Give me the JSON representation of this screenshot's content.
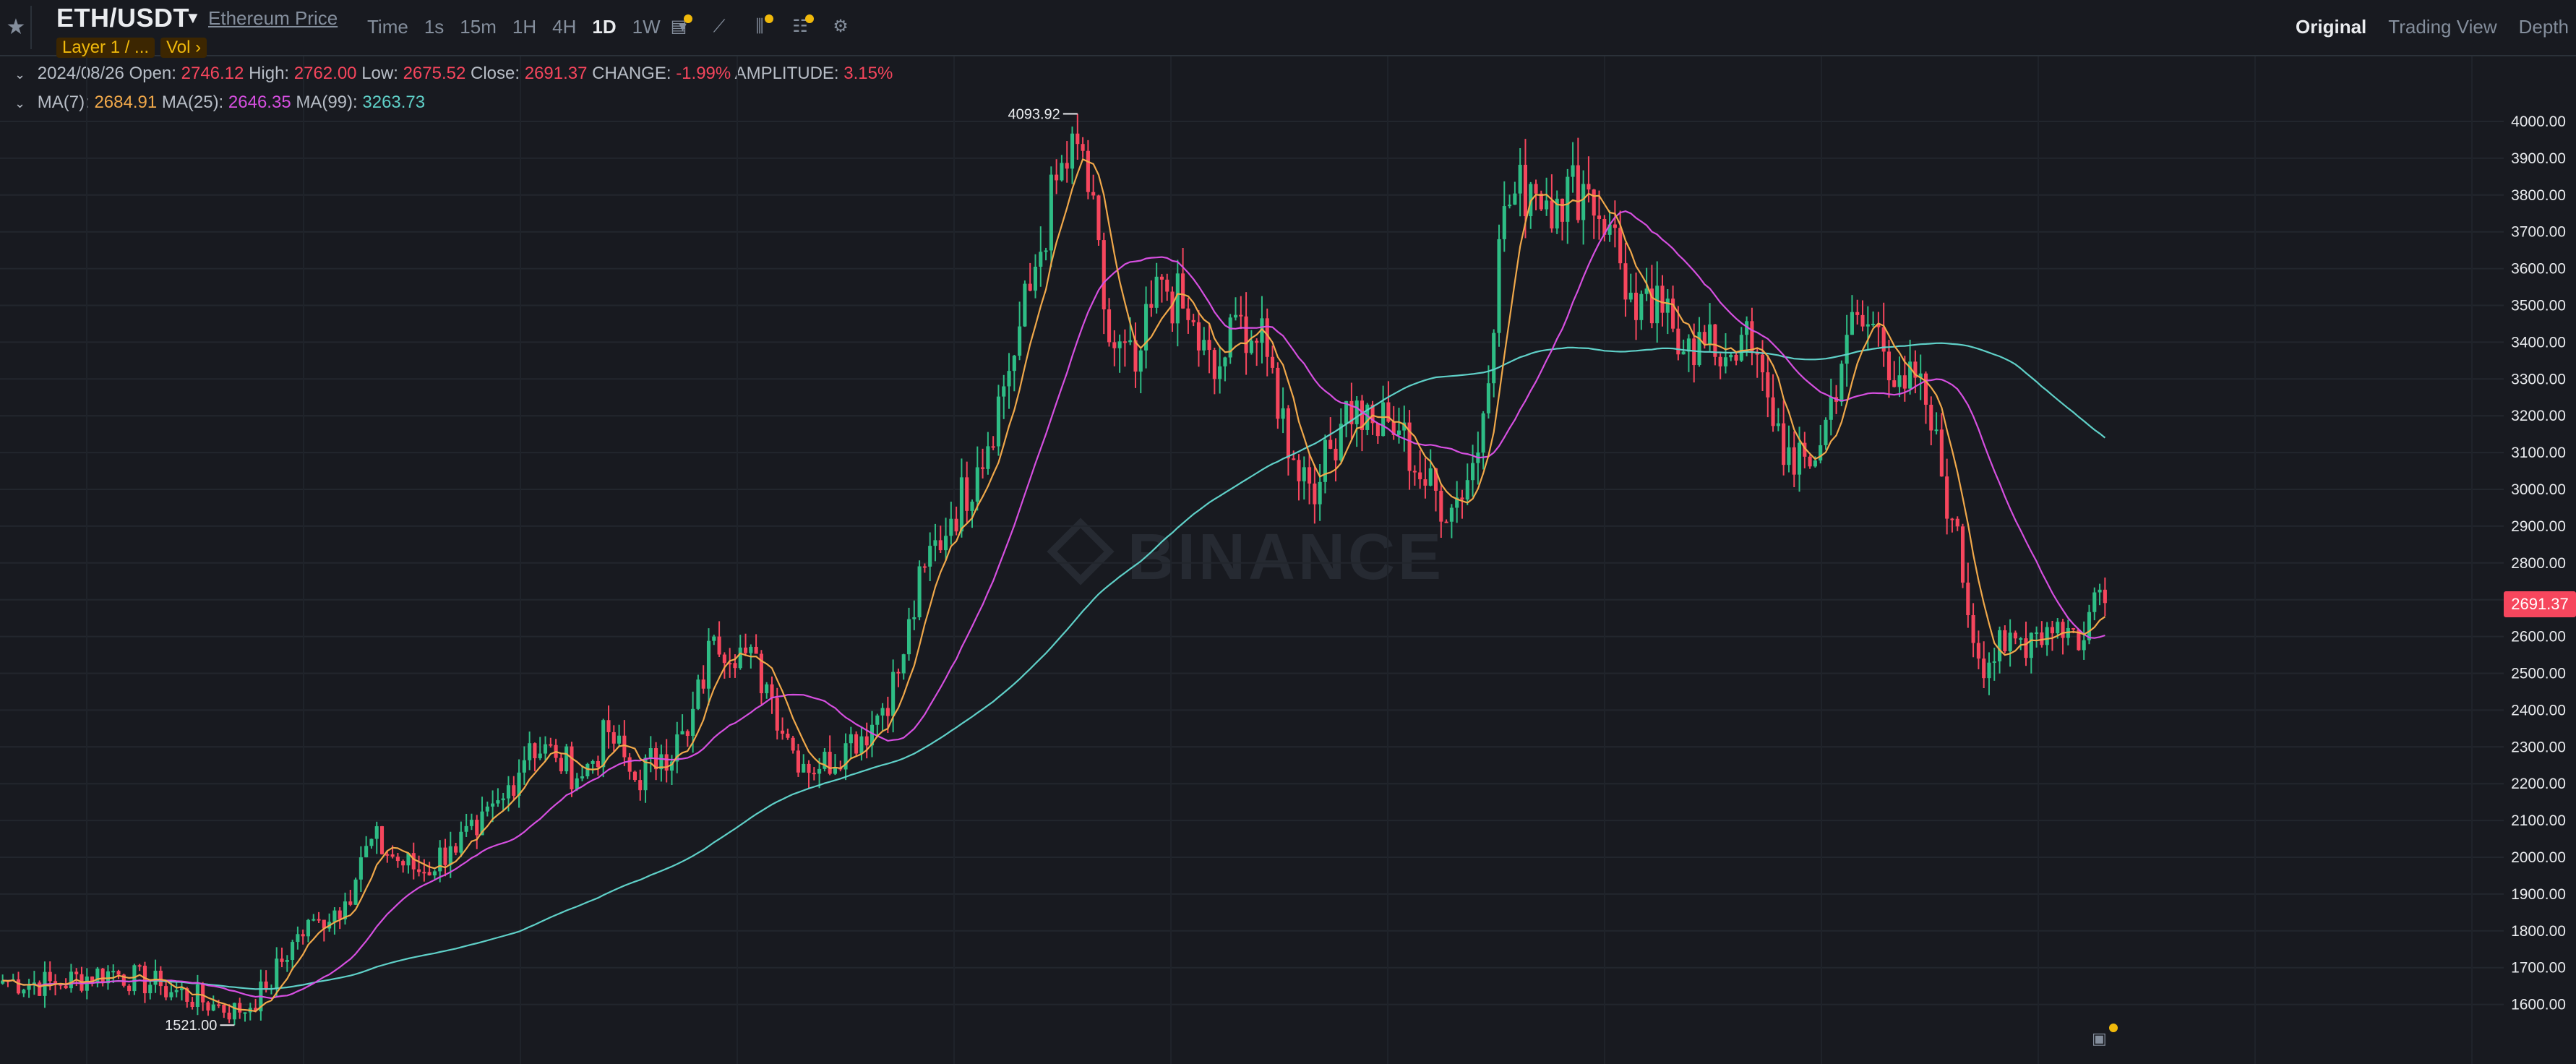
{
  "header": {
    "symbol": "ETH/USDT",
    "price_link": "Ethereum Price",
    "tags": [
      "Layer 1 / ...",
      "Vol  ›"
    ],
    "intervals": [
      "Time",
      "1s",
      "15m",
      "1H",
      "4H",
      "1D",
      "1W"
    ],
    "active_interval": "1D",
    "tool_icons": [
      "indicator-template-icon",
      "line-chart-icon",
      "candle-settings-icon",
      "display-settings-icon",
      "gear-icon"
    ],
    "views": [
      "Original",
      "Trading View",
      "Depth"
    ],
    "active_view": "Original"
  },
  "ohlc": {
    "date": "2024/08/26",
    "open_label": "Open:",
    "open": "2746.12",
    "high_label": "High:",
    "high": "2762.00",
    "low_label": "Low:",
    "low": "2675.52",
    "close_label": "Close:",
    "close": "2691.37",
    "change_label": "CHANGE:",
    "change": "-1.99%",
    "amplitude_label": "AMPLITUDE:",
    "amplitude": "3.15%"
  },
  "ma": {
    "ma7_label": "MA(7):",
    "ma7": "2684.91",
    "ma25_label": "MA(25):",
    "ma25": "2646.35",
    "ma99_label": "MA(99):",
    "ma99": "3263.73"
  },
  "watermark": "BINANCE",
  "last_price": "2691.37",
  "colors": {
    "up": "#2ebd85",
    "down": "#f6465d",
    "ma7": "#f0a84a",
    "ma25": "#d64fe0",
    "ma99": "#5fd0c8",
    "background": "#181a20"
  },
  "chart_data": {
    "type": "candlestick",
    "symbol": "ETH/USDT",
    "interval": "1D",
    "y_ticks": [
      "4000.00",
      "3900.00",
      "3800.00",
      "3700.00",
      "3600.00",
      "3500.00",
      "3400.00",
      "3300.00",
      "3200.00",
      "3100.00",
      "3000.00",
      "2900.00",
      "2800.00",
      "2700.00",
      "2600.00",
      "2500.00",
      "2400.00",
      "2300.00",
      "2200.00",
      "2100.00",
      "2000.00",
      "1900.00",
      "1800.00",
      "1700.00",
      "1600.00"
    ],
    "ylim": [
      1500,
      4130
    ],
    "max_label": "4093.92",
    "min_label": "1521.00",
    "close_anchors": [
      [
        0,
        1665
      ],
      [
        10,
        1655
      ],
      [
        20,
        1690
      ],
      [
        30,
        1650
      ],
      [
        40,
        1600
      ],
      [
        45,
        1578
      ],
      [
        50,
        1640
      ],
      [
        55,
        1770
      ],
      [
        60,
        1830
      ],
      [
        65,
        1880
      ],
      [
        70,
        2050
      ],
      [
        75,
        1990
      ],
      [
        80,
        1960
      ],
      [
        85,
        2030
      ],
      [
        90,
        2060
      ],
      [
        95,
        2160
      ],
      [
        100,
        2310
      ],
      [
        105,
        2270
      ],
      [
        110,
        2220
      ],
      [
        115,
        2340
      ],
      [
        120,
        2210
      ],
      [
        125,
        2280
      ],
      [
        130,
        2330
      ],
      [
        135,
        2600
      ],
      [
        140,
        2570
      ],
      [
        145,
        2470
      ],
      [
        150,
        2290
      ],
      [
        155,
        2240
      ],
      [
        160,
        2310
      ],
      [
        165,
        2360
      ],
      [
        170,
        2500
      ],
      [
        175,
        2790
      ],
      [
        180,
        2920
      ],
      [
        185,
        3060
      ],
      [
        190,
        3280
      ],
      [
        195,
        3540
      ],
      [
        200,
        3840
      ],
      [
        205,
        3920
      ],
      [
        210,
        3400
      ],
      [
        215,
        3320
      ],
      [
        220,
        3570
      ],
      [
        225,
        3460
      ],
      [
        230,
        3300
      ],
      [
        235,
        3470
      ],
      [
        240,
        3360
      ],
      [
        245,
        3080
      ],
      [
        250,
        3020
      ],
      [
        255,
        3240
      ],
      [
        260,
        3180
      ],
      [
        265,
        3160
      ],
      [
        270,
        3010
      ],
      [
        275,
        2950
      ],
      [
        280,
        3100
      ],
      [
        285,
        3770
      ],
      [
        290,
        3830
      ],
      [
        295,
        3790
      ],
      [
        300,
        3830
      ],
      [
        305,
        3720
      ],
      [
        310,
        3460
      ],
      [
        315,
        3480
      ],
      [
        320,
        3410
      ],
      [
        325,
        3360
      ],
      [
        330,
        3420
      ],
      [
        335,
        3250
      ],
      [
        340,
        3040
      ],
      [
        345,
        3120
      ],
      [
        350,
        3420
      ],
      [
        355,
        3450
      ],
      [
        360,
        3310
      ],
      [
        365,
        3230
      ],
      [
        370,
        2920
      ],
      [
        375,
        2540
      ],
      [
        380,
        2560
      ],
      [
        385,
        2610
      ],
      [
        390,
        2640
      ],
      [
        395,
        2590
      ],
      [
        397,
        2720
      ],
      [
        399,
        2691
      ]
    ]
  }
}
